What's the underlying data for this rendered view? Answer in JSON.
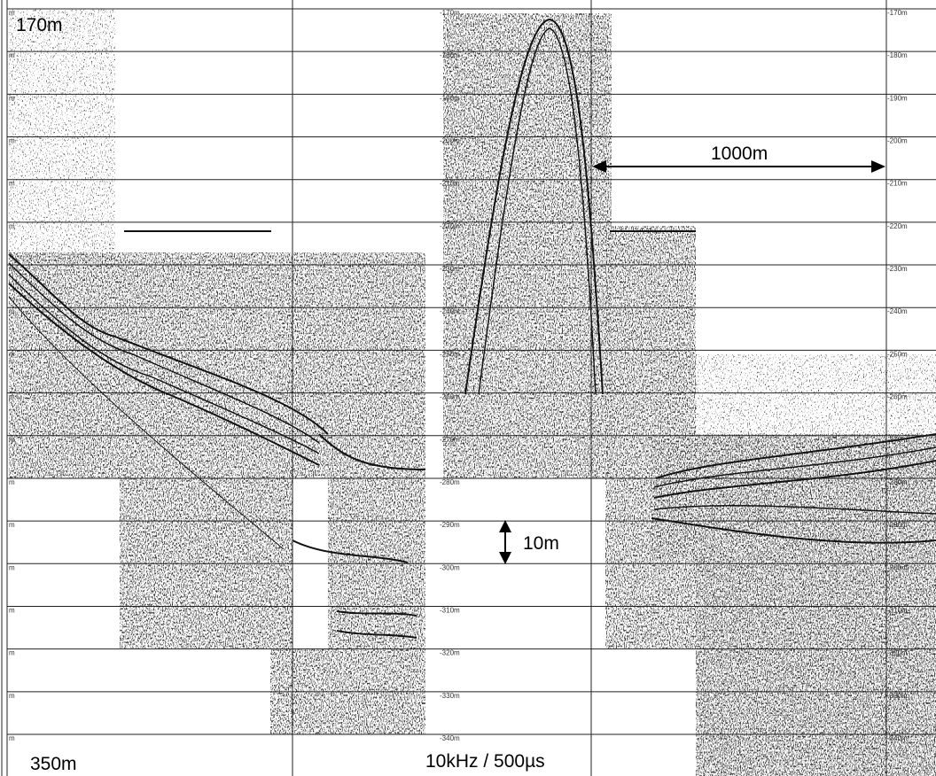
{
  "corner_labels": {
    "top": "170m",
    "bottom": "350m"
  },
  "pulse_label": "10kHz / 500µs",
  "scale_labels": {
    "horizontal": "1000m",
    "vertical": "10m"
  },
  "depth_ticks": {
    "left": [
      "m",
      "m",
      "m",
      "m",
      "m",
      "m",
      "m",
      "m",
      "m",
      "m",
      "m",
      "m",
      "m",
      "m",
      "m",
      "m",
      "m",
      "m"
    ],
    "middle": [
      "-170m",
      "-180m",
      "-190m",
      "-200m",
      "-210m",
      "-220m",
      "-230m",
      "-240m",
      "-250m",
      "-260m",
      "-270m",
      "-280m",
      "-290m",
      "-300m",
      "-310m",
      "-320m",
      "-330m",
      "-340m"
    ],
    "right": [
      "-170m",
      "-180m",
      "-190m",
      "-200m",
      "-210m",
      "-220m",
      "-230m",
      "-240m",
      "-250m",
      "-260m",
      "-270m",
      "-280m",
      "-290m",
      "-300m",
      "-310m",
      "-320m",
      "-330m",
      "-340m"
    ]
  }
}
